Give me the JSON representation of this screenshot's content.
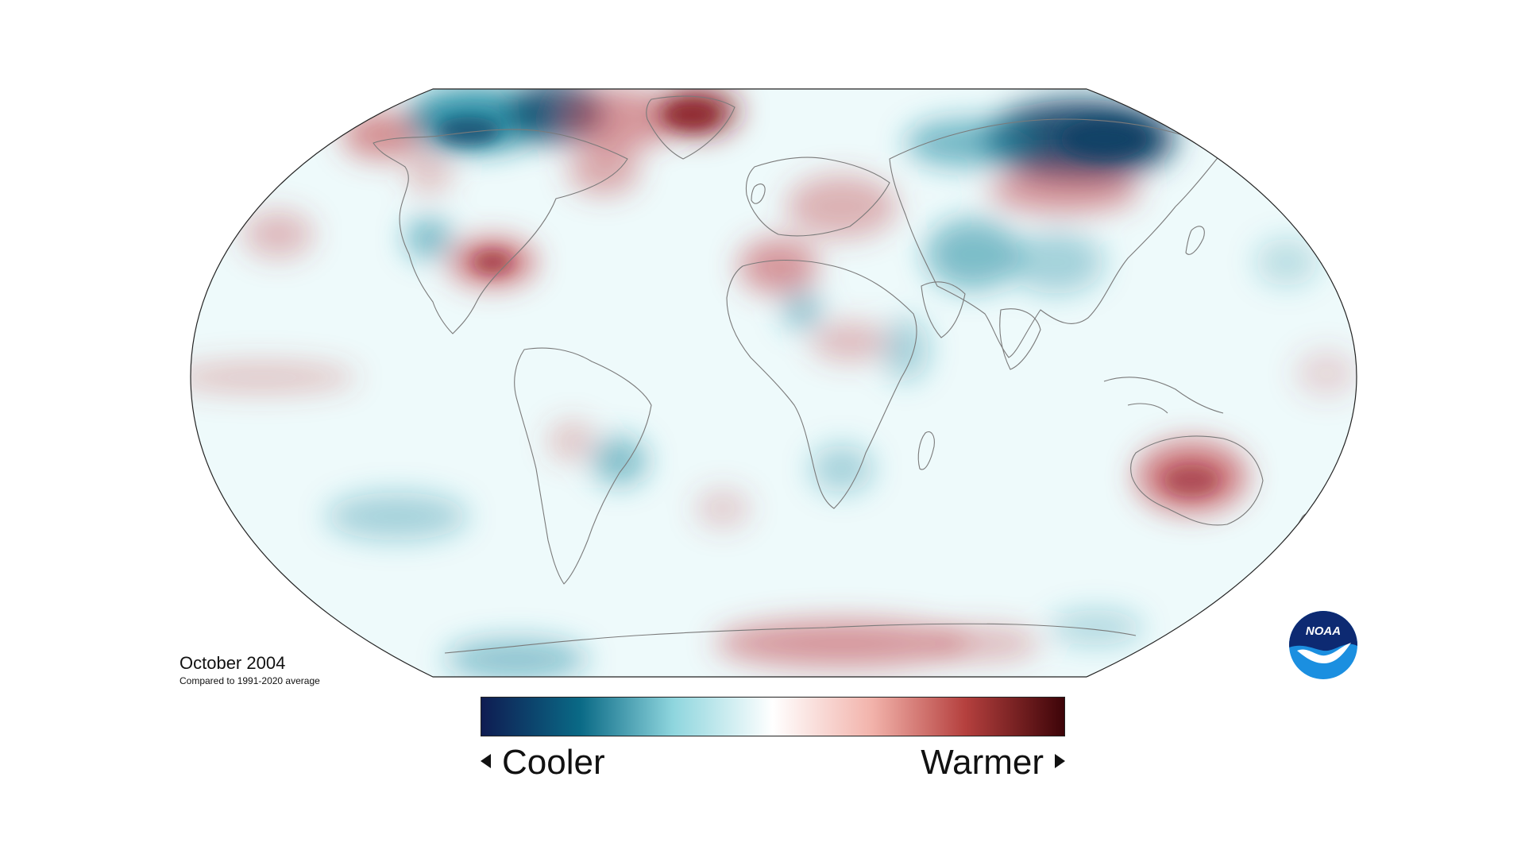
{
  "title": "October 2004",
  "subtitle": "Compared to 1991-2020 average",
  "legend": {
    "cooler_label": "Cooler",
    "warmer_label": "Warmer",
    "gradient_colors": [
      "#0f1c52",
      "#0a6a86",
      "#8fd6de",
      "#ffffff",
      "#f2b3ab",
      "#b5403e",
      "#3d0408"
    ]
  },
  "logo": {
    "text": "NOAA",
    "icon": "noaa-bird-logo",
    "colors": {
      "top": "#0d2a72",
      "bottom": "#1b8fe0",
      "bird": "#ffffff"
    }
  },
  "map": {
    "projection": "robinson",
    "ocean_base_color": "#eefafb",
    "warm_color": "#c1444a",
    "cool_color": "#1f8aa1",
    "coastline_color": "#7a7a7a"
  }
}
